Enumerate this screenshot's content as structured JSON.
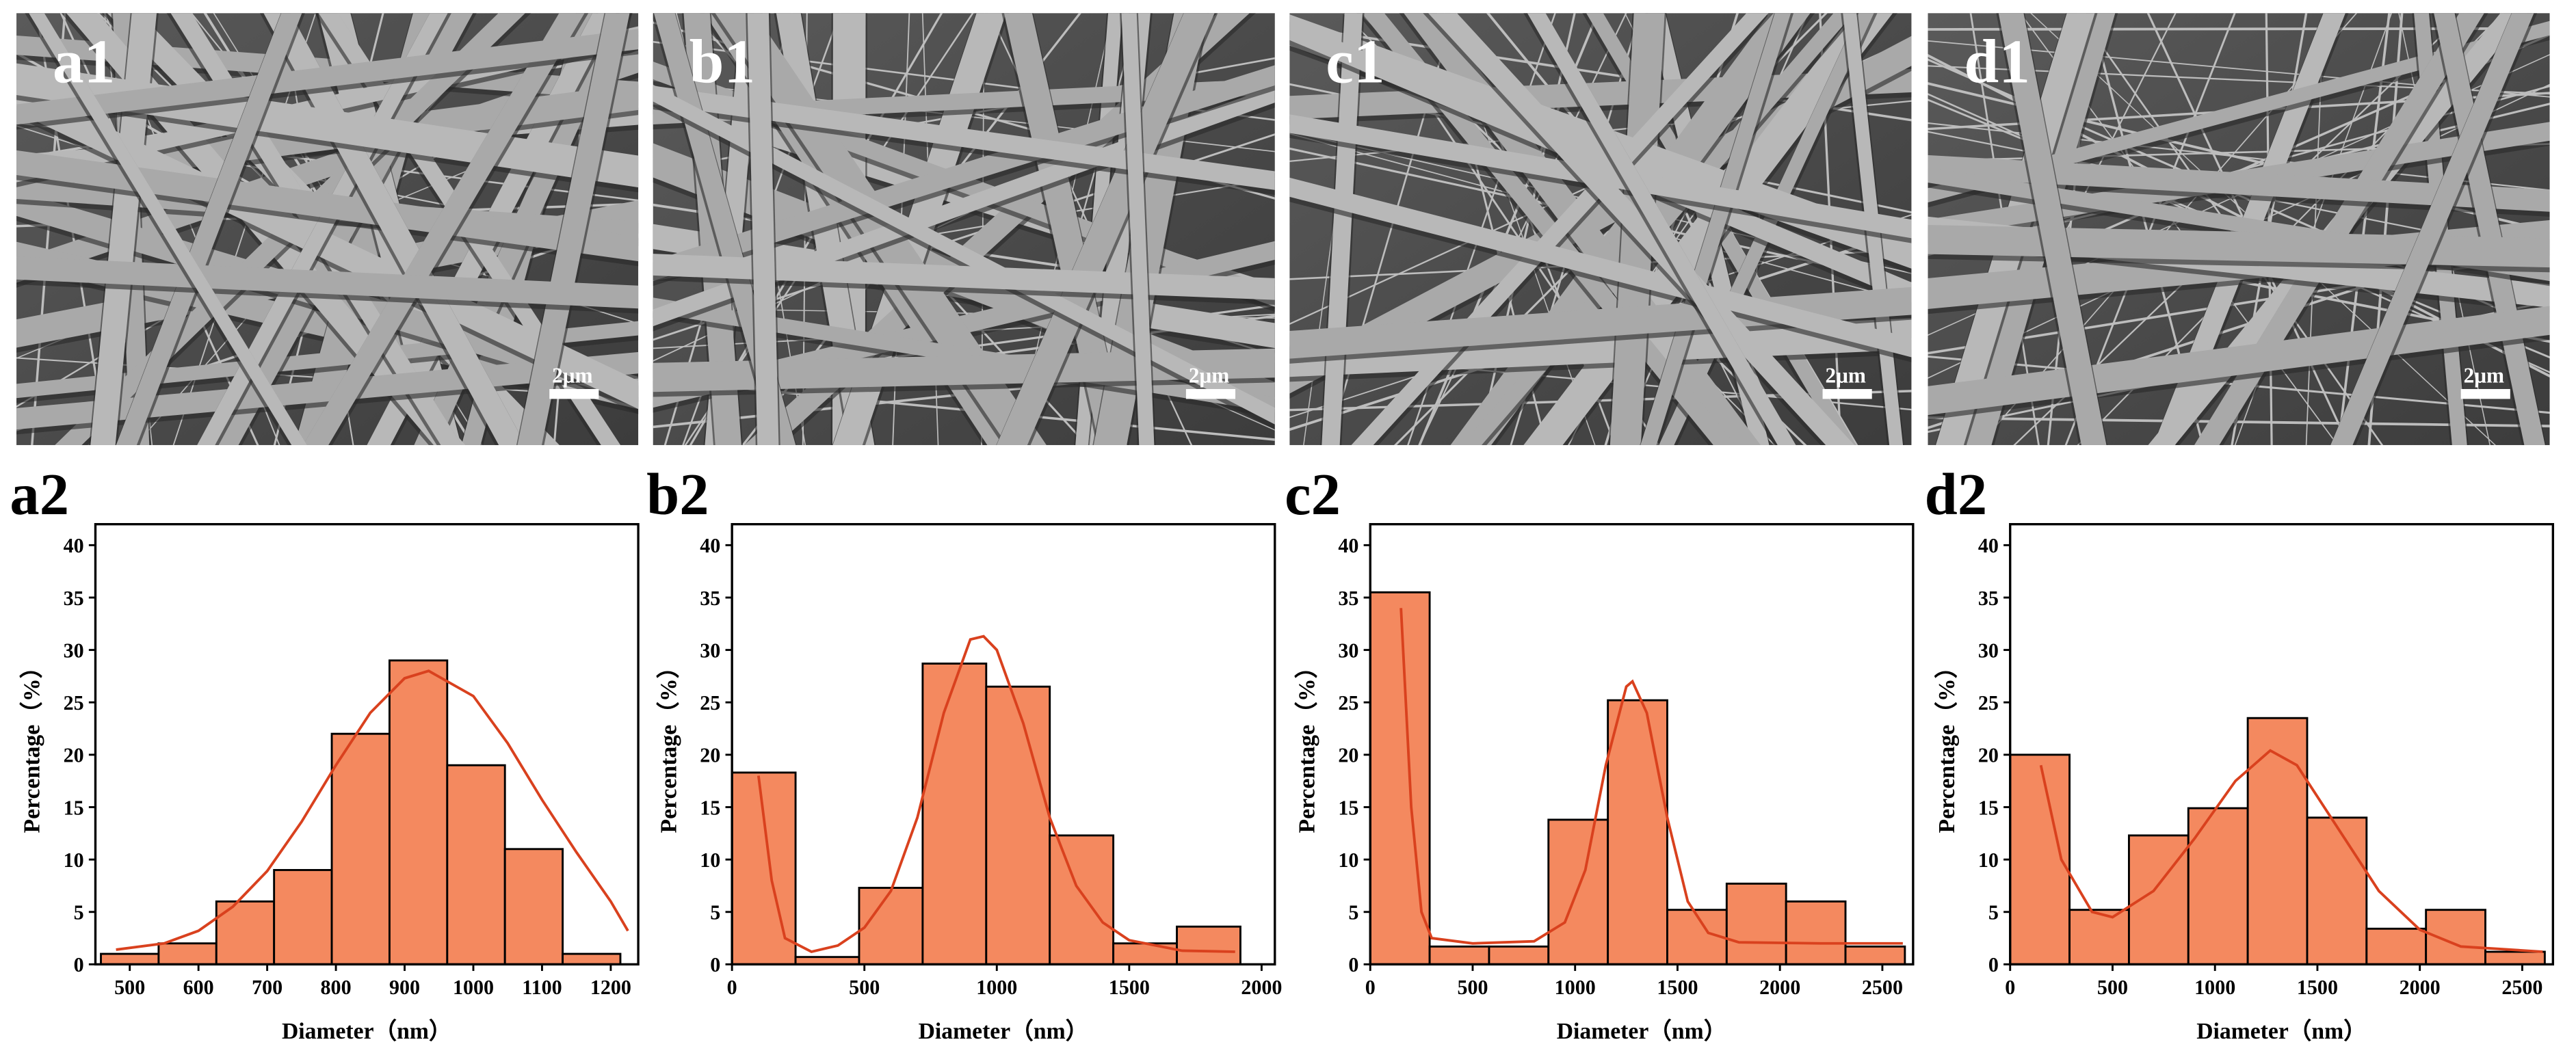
{
  "images": [
    {
      "label": "a1",
      "scale_bar": "2μm"
    },
    {
      "label": "b1",
      "scale_bar": "2μm"
    },
    {
      "label": "c1",
      "scale_bar": "2μm"
    },
    {
      "label": "d1",
      "scale_bar": "2μm"
    }
  ],
  "chart_data": [
    {
      "type": "histogram",
      "title": "a2",
      "xlabel": "Diameter（nm）",
      "ylabel": "Percentage（%）",
      "bins": [
        458,
        542,
        626,
        710,
        794,
        878,
        962,
        1046,
        1130,
        1214
      ],
      "values": [
        1,
        2,
        6,
        9,
        22,
        29,
        19,
        11,
        1
      ],
      "color": "#f4895f",
      "fit": {
        "color": "#d9411e",
        "x": [
          480,
          550,
          600,
          650,
          700,
          750,
          800,
          850,
          900,
          935,
          1000,
          1050,
          1100,
          1150,
          1200,
          1225
        ],
        "values": [
          1.4,
          2.0,
          3.2,
          5.5,
          8.9,
          13.6,
          19.0,
          24.0,
          27.3,
          28,
          25.6,
          21.1,
          15.7,
          10.7,
          6.0,
          3.2
        ]
      },
      "xlim": [
        450,
        1240
      ],
      "xticks": [
        500,
        600,
        700,
        800,
        900,
        1000,
        1100,
        1200
      ],
      "ylim": [
        0,
        42
      ],
      "yticks": [
        0,
        5,
        10,
        15,
        20,
        25,
        30,
        35,
        40
      ]
    },
    {
      "type": "histogram",
      "title": "b2",
      "xlabel": "Diameter（nm）",
      "ylabel": "Percentage（%）",
      "bins": [
        0,
        240,
        480,
        720,
        960,
        1200,
        1440,
        1680,
        1920
      ],
      "values": [
        18.3,
        0.7,
        7.3,
        28.7,
        26.5,
        12.3,
        2,
        3.6
      ],
      "color": "#f4895f",
      "fit": {
        "color": "#d9411e",
        "x": [
          100,
          150,
          200,
          300,
          400,
          500,
          600,
          700,
          800,
          900,
          950,
          1000,
          1100,
          1200,
          1300,
          1400,
          1500,
          1700,
          1900
        ],
        "values": [
          18,
          8,
          2.5,
          1.2,
          1.8,
          3.5,
          7,
          14,
          24,
          31,
          31.3,
          30,
          23,
          14,
          7.5,
          4,
          2.3,
          1.3,
          1.2
        ]
      },
      "xlim": [
        0,
        2050
      ],
      "xticks": [
        0,
        500,
        1000,
        1500,
        2000
      ],
      "ylim": [
        0,
        42
      ],
      "yticks": [
        0,
        5,
        10,
        15,
        20,
        25,
        30,
        35,
        40
      ]
    },
    {
      "type": "histogram",
      "title": "c2",
      "xlabel": "Diameter（nm）",
      "ylabel": "Percentage（%）",
      "bins": [
        0,
        290,
        580,
        870,
        1160,
        1450,
        1740,
        2030,
        2320,
        2610
      ],
      "values": [
        35.5,
        1.7,
        1.7,
        13.8,
        25.2,
        5.2,
        7.7,
        6,
        1.7
      ],
      "color": "#f4895f",
      "fit": {
        "color": "#d9411e",
        "x": [
          150,
          200,
          250,
          300,
          500,
          800,
          950,
          1050,
          1150,
          1250,
          1280,
          1350,
          1450,
          1550,
          1650,
          1800,
          2200,
          2600
        ],
        "values": [
          34,
          15,
          5,
          2.5,
          2,
          2.2,
          4,
          9,
          19,
          26.5,
          27,
          24,
          14,
          6,
          3,
          2.1,
          2,
          2
        ]
      },
      "xlim": [
        0,
        2650
      ],
      "xticks": [
        0,
        500,
        1000,
        1500,
        2000,
        2500
      ],
      "ylim": [
        0,
        42
      ],
      "yticks": [
        0,
        5,
        10,
        15,
        20,
        25,
        30,
        35,
        40
      ]
    },
    {
      "type": "histogram",
      "title": "d2",
      "xlabel": "Diameter（nm）",
      "ylabel": "Percentage（%）",
      "bins": [
        0,
        290,
        580,
        870,
        1160,
        1450,
        1740,
        2030,
        2320,
        2610
      ],
      "values": [
        20,
        5.2,
        12.3,
        14.9,
        23.5,
        14,
        3.4,
        5.2,
        1.2
      ],
      "color": "#f4895f",
      "fit": {
        "color": "#d9411e",
        "x": [
          150,
          250,
          400,
          500,
          700,
          900,
          1100,
          1270,
          1400,
          1600,
          1800,
          2000,
          2200,
          2600
        ],
        "values": [
          19,
          10,
          5,
          4.5,
          7,
          12,
          17.5,
          20.4,
          19,
          13,
          7,
          3.3,
          1.7,
          1.2
        ]
      },
      "xlim": [
        0,
        2650
      ],
      "xticks": [
        0,
        500,
        1000,
        1500,
        2000,
        2500
      ],
      "ylim": [
        0,
        42
      ],
      "yticks": [
        0,
        5,
        10,
        15,
        20,
        25,
        30,
        35,
        40
      ]
    }
  ]
}
